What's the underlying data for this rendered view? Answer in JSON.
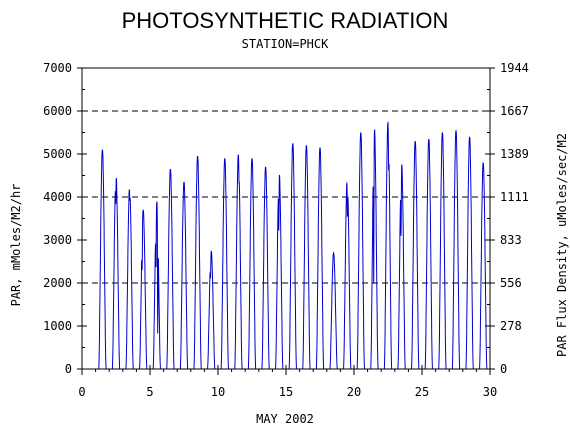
{
  "chart_data": {
    "type": "line",
    "title": "PHOTOSYNTHETIC RADIATION",
    "subtitle": "STATION=PHCK",
    "xlabel": "MAY 2002",
    "ylabel": "PAR, mMoles/M2/hr",
    "ylabel_right": "PAR Flux Density, uMoles/sec/M2",
    "xlim": [
      0,
      30
    ],
    "ylim": [
      0,
      7000
    ],
    "x_ticks": [
      "0",
      "5",
      "10",
      "15",
      "20",
      "25",
      "30"
    ],
    "y_ticks": [
      "0",
      "1000",
      "2000",
      "3000",
      "4000",
      "5000",
      "6000",
      "7000"
    ],
    "y_ticks_right": [
      "0",
      "278",
      "556",
      "833",
      "1111",
      "1389",
      "1667",
      "1944"
    ],
    "grid": "dashed horizontal at 2000, 4000, 6000",
    "series": [
      {
        "color": "#0000cc",
        "daily_peaks": [
          {
            "day": 1,
            "peak": 5100,
            "dips": []
          },
          {
            "day": 2,
            "peak": 4550,
            "dips": [
              [
                -0.02,
                3800
              ]
            ]
          },
          {
            "day": 3,
            "peak": 4250,
            "dips": [
              [
                0.02,
                3900
              ]
            ]
          },
          {
            "day": 4,
            "peak": 3700,
            "dips": [
              [
                -0.08,
                2300
              ]
            ]
          },
          {
            "day": 5,
            "peak": 3900,
            "dips": [
              [
                -0.06,
                2300
              ],
              [
                0.07,
                800
              ]
            ]
          },
          {
            "day": 6,
            "peak": 4650,
            "dips": []
          },
          {
            "day": 7,
            "peak": 4350,
            "dips": []
          },
          {
            "day": 8,
            "peak": 4950,
            "dips": []
          },
          {
            "day": 9,
            "peak": 2750,
            "dips": [
              [
                -0.05,
                2100
              ]
            ]
          },
          {
            "day": 10,
            "peak": 4900,
            "dips": []
          },
          {
            "day": 11,
            "peak": 5000,
            "dips": [
              [
                0.05,
                4300
              ]
            ]
          },
          {
            "day": 12,
            "peak": 4900,
            "dips": []
          },
          {
            "day": 13,
            "peak": 4700,
            "dips": []
          },
          {
            "day": 14,
            "peak": 4600,
            "dips": [
              [
                -0.03,
                3200
              ]
            ]
          },
          {
            "day": 15,
            "peak": 5250,
            "dips": []
          },
          {
            "day": 16,
            "peak": 5200,
            "dips": []
          },
          {
            "day": 17,
            "peak": 5150,
            "dips": []
          },
          {
            "day": 18,
            "peak": 2700,
            "dips": [
              [
                -0.25,
                1300
              ]
            ]
          },
          {
            "day": 19,
            "peak": 4450,
            "dips": [
              [
                0.02,
                3500
              ]
            ]
          },
          {
            "day": 20,
            "peak": 5500,
            "dips": []
          },
          {
            "day": 21,
            "peak": 5600,
            "dips": [
              [
                -0.05,
                1900
              ]
            ]
          },
          {
            "day": 22,
            "peak": 5750,
            "dips": [
              [
                0.05,
                4600
              ]
            ]
          },
          {
            "day": 23,
            "peak": 4800,
            "dips": [
              [
                -0.04,
                3100
              ]
            ]
          },
          {
            "day": 24,
            "peak": 5300,
            "dips": []
          },
          {
            "day": 25,
            "peak": 5350,
            "dips": []
          },
          {
            "day": 26,
            "peak": 5500,
            "dips": []
          },
          {
            "day": 27,
            "peak": 5550,
            "dips": []
          },
          {
            "day": 28,
            "peak": 5400,
            "dips": []
          },
          {
            "day": 29,
            "peak": 4800,
            "dips": []
          }
        ]
      }
    ]
  }
}
